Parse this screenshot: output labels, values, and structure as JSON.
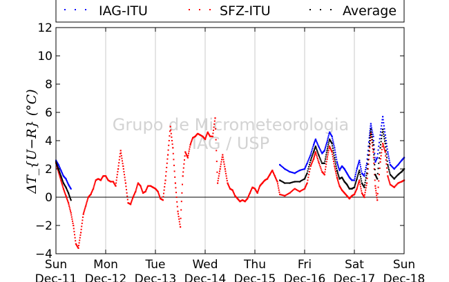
{
  "chart_data": {
    "type": "scatter",
    "ylabel": "ΔT_{U−R} (°C)",
    "ylim": [
      -4,
      12
    ],
    "yticks": [
      -4,
      -2,
      0,
      2,
      4,
      6,
      8,
      10,
      12
    ],
    "xlim": [
      0,
      7
    ],
    "x_unit": "days from Sun Dec-11",
    "xtick_labels": [
      {
        "day": "Sun",
        "date": "Dec-11"
      },
      {
        "day": "Mon",
        "date": "Dec-12"
      },
      {
        "day": "Tue",
        "date": "Dec-13"
      },
      {
        "day": "Wed",
        "date": "Dec-14"
      },
      {
        "day": "Thu",
        "date": "Dec-15"
      },
      {
        "day": "Fri",
        "date": "Dec-16"
      },
      {
        "day": "Sat",
        "date": "Dec-17"
      },
      {
        "day": "Sun",
        "date": "Dec-18"
      }
    ],
    "grid": "vertical-only",
    "zero_line": true,
    "legend_position": "top, above plot",
    "watermark": [
      "Grupo de Micrometeorologia",
      "IAG / USP"
    ],
    "series": [
      {
        "name": "IAG-ITU",
        "color": "#0000ff",
        "points": [
          [
            0.0,
            2.6
          ],
          [
            0.05,
            2.3
          ],
          [
            0.1,
            1.9
          ],
          [
            0.15,
            1.5
          ],
          [
            0.2,
            1.3
          ],
          [
            0.25,
            0.9
          ],
          [
            0.3,
            0.6
          ],
          [
            4.5,
            2.3
          ],
          [
            4.6,
            2.0
          ],
          [
            4.7,
            1.8
          ],
          [
            4.8,
            1.7
          ],
          [
            4.9,
            1.9
          ],
          [
            5.0,
            2.0
          ],
          [
            5.05,
            2.4
          ],
          [
            5.12,
            3.0
          ],
          [
            5.18,
            3.7
          ],
          [
            5.22,
            4.1
          ],
          [
            5.28,
            3.6
          ],
          [
            5.35,
            3.1
          ],
          [
            5.4,
            3.3
          ],
          [
            5.45,
            3.9
          ],
          [
            5.5,
            4.6
          ],
          [
            5.55,
            4.3
          ],
          [
            5.6,
            3.5
          ],
          [
            5.65,
            2.5
          ],
          [
            5.7,
            1.9
          ],
          [
            5.75,
            2.2
          ],
          [
            5.8,
            2.0
          ],
          [
            5.85,
            1.7
          ],
          [
            5.9,
            1.4
          ],
          [
            5.95,
            1.2
          ],
          [
            6.0,
            1.2
          ],
          [
            6.05,
            2.0
          ],
          [
            6.1,
            2.6
          ],
          [
            6.15,
            1.7
          ],
          [
            6.2,
            1.5
          ],
          [
            6.25,
            2.4
          ],
          [
            6.3,
            4.2
          ],
          [
            6.33,
            5.2
          ],
          [
            6.38,
            4.3
          ],
          [
            6.42,
            2.5
          ],
          [
            6.46,
            2.8
          ],
          [
            6.52,
            4.4
          ],
          [
            6.57,
            5.7
          ],
          [
            6.62,
            4.4
          ],
          [
            6.67,
            3.2
          ],
          [
            6.72,
            2.3
          ],
          [
            6.8,
            2.0
          ],
          [
            6.88,
            2.3
          ],
          [
            6.95,
            2.6
          ],
          [
            7.0,
            2.8
          ]
        ]
      },
      {
        "name": "SFZ-ITU",
        "color": "#ff0000",
        "points": [
          [
            0.0,
            2.4
          ],
          [
            0.05,
            1.8
          ],
          [
            0.1,
            1.2
          ],
          [
            0.15,
            0.6
          ],
          [
            0.2,
            0.1
          ],
          [
            0.25,
            -0.4
          ],
          [
            0.3,
            -1.1
          ],
          [
            0.35,
            -2.0
          ],
          [
            0.4,
            -3.3
          ],
          [
            0.45,
            -3.6
          ],
          [
            0.5,
            -2.5
          ],
          [
            0.55,
            -1.2
          ],
          [
            0.6,
            -0.6
          ],
          [
            0.65,
            0.0
          ],
          [
            0.7,
            0.2
          ],
          [
            0.75,
            0.6
          ],
          [
            0.8,
            1.2
          ],
          [
            0.85,
            1.3
          ],
          [
            0.9,
            1.2
          ],
          [
            0.95,
            1.5
          ],
          [
            1.0,
            1.5
          ],
          [
            1.05,
            1.2
          ],
          [
            1.1,
            1.1
          ],
          [
            1.15,
            1.1
          ],
          [
            1.2,
            0.8
          ],
          [
            1.25,
            2.0
          ],
          [
            1.3,
            3.3
          ],
          [
            1.35,
            2.2
          ],
          [
            1.4,
            1.0
          ],
          [
            1.45,
            -0.4
          ],
          [
            1.5,
            -0.5
          ],
          [
            1.55,
            0.0
          ],
          [
            1.6,
            0.4
          ],
          [
            1.65,
            1.0
          ],
          [
            1.7,
            0.8
          ],
          [
            1.75,
            0.3
          ],
          [
            1.8,
            0.4
          ],
          [
            1.85,
            0.8
          ],
          [
            1.9,
            0.8
          ],
          [
            1.95,
            0.7
          ],
          [
            2.0,
            0.6
          ],
          [
            2.05,
            0.4
          ],
          [
            2.1,
            -0.1
          ],
          [
            2.15,
            -0.2
          ],
          [
            2.2,
            1.2
          ],
          [
            2.25,
            3.0
          ],
          [
            2.3,
            5.0
          ],
          [
            2.35,
            3.5
          ],
          [
            2.4,
            1.0
          ],
          [
            2.45,
            -1.0
          ],
          [
            2.5,
            -2.1
          ],
          [
            2.55,
            1.5
          ],
          [
            2.6,
            3.2
          ],
          [
            2.65,
            2.8
          ],
          [
            2.7,
            3.7
          ],
          [
            2.75,
            4.2
          ],
          [
            2.8,
            4.3
          ],
          [
            2.85,
            4.5
          ],
          [
            2.9,
            4.4
          ],
          [
            2.95,
            4.3
          ],
          [
            3.0,
            4.1
          ],
          [
            3.05,
            4.6
          ],
          [
            3.1,
            4.3
          ],
          [
            3.15,
            4.3
          ],
          [
            3.2,
            5.6
          ],
          [
            3.25,
            1.0
          ],
          [
            3.3,
            2.0
          ],
          [
            3.35,
            3.0
          ],
          [
            3.4,
            2.0
          ],
          [
            3.45,
            1.0
          ],
          [
            3.5,
            0.6
          ],
          [
            3.55,
            0.5
          ],
          [
            3.6,
            0.1
          ],
          [
            3.65,
            -0.1
          ],
          [
            3.7,
            -0.3
          ],
          [
            3.75,
            -0.2
          ],
          [
            3.8,
            -0.3
          ],
          [
            3.85,
            -0.1
          ],
          [
            3.9,
            0.3
          ],
          [
            3.95,
            0.7
          ],
          [
            4.0,
            0.6
          ],
          [
            4.05,
            0.3
          ],
          [
            4.1,
            0.8
          ],
          [
            4.15,
            1.0
          ],
          [
            4.2,
            1.2
          ],
          [
            4.25,
            1.3
          ],
          [
            4.3,
            1.6
          ],
          [
            4.35,
            1.9
          ],
          [
            4.4,
            1.5
          ],
          [
            4.45,
            1.1
          ],
          [
            4.5,
            0.2
          ],
          [
            4.6,
            0.1
          ],
          [
            4.7,
            0.3
          ],
          [
            4.8,
            0.6
          ],
          [
            4.9,
            0.4
          ],
          [
            5.0,
            0.6
          ],
          [
            5.05,
            1.0
          ],
          [
            5.12,
            2.2
          ],
          [
            5.18,
            2.7
          ],
          [
            5.22,
            3.2
          ],
          [
            5.28,
            2.5
          ],
          [
            5.35,
            1.8
          ],
          [
            5.4,
            1.6
          ],
          [
            5.45,
            2.7
          ],
          [
            5.5,
            3.6
          ],
          [
            5.55,
            3.2
          ],
          [
            5.6,
            2.2
          ],
          [
            5.65,
            1.4
          ],
          [
            5.7,
            0.8
          ],
          [
            5.75,
            0.5
          ],
          [
            5.8,
            0.3
          ],
          [
            5.85,
            0.1
          ],
          [
            5.9,
            -0.1
          ],
          [
            5.95,
            0.1
          ],
          [
            6.0,
            0.2
          ],
          [
            6.05,
            0.6
          ],
          [
            6.1,
            1.2
          ],
          [
            6.15,
            0.3
          ],
          [
            6.2,
            0.0
          ],
          [
            6.25,
            1.0
          ],
          [
            6.3,
            3.0
          ],
          [
            6.33,
            4.5
          ],
          [
            6.38,
            3.2
          ],
          [
            6.42,
            0.8
          ],
          [
            6.46,
            -0.2
          ],
          [
            6.52,
            2.5
          ],
          [
            6.57,
            3.8
          ],
          [
            6.62,
            3.2
          ],
          [
            6.67,
            1.5
          ],
          [
            6.72,
            0.9
          ],
          [
            6.8,
            0.7
          ],
          [
            6.88,
            1.0
          ],
          [
            6.95,
            1.1
          ],
          [
            7.0,
            1.2
          ]
        ]
      },
      {
        "name": "Average",
        "color": "#000000",
        "points": [
          [
            0.0,
            2.5
          ],
          [
            0.05,
            2.0
          ],
          [
            0.1,
            1.5
          ],
          [
            0.15,
            1.0
          ],
          [
            0.2,
            0.7
          ],
          [
            0.25,
            0.3
          ],
          [
            0.3,
            -0.2
          ],
          [
            4.5,
            1.2
          ],
          [
            4.6,
            1.0
          ],
          [
            4.7,
            1.0
          ],
          [
            4.8,
            1.1
          ],
          [
            4.9,
            1.1
          ],
          [
            5.0,
            1.3
          ],
          [
            5.05,
            1.7
          ],
          [
            5.12,
            2.6
          ],
          [
            5.18,
            3.2
          ],
          [
            5.22,
            3.6
          ],
          [
            5.28,
            3.0
          ],
          [
            5.35,
            2.4
          ],
          [
            5.4,
            2.4
          ],
          [
            5.45,
            3.3
          ],
          [
            5.5,
            4.1
          ],
          [
            5.55,
            3.8
          ],
          [
            5.6,
            2.8
          ],
          [
            5.65,
            1.9
          ],
          [
            5.7,
            1.3
          ],
          [
            5.75,
            1.4
          ],
          [
            5.8,
            1.1
          ],
          [
            5.85,
            0.9
          ],
          [
            5.9,
            0.6
          ],
          [
            5.95,
            0.6
          ],
          [
            6.0,
            0.7
          ],
          [
            6.05,
            1.3
          ],
          [
            6.1,
            1.9
          ],
          [
            6.15,
            1.0
          ],
          [
            6.2,
            0.7
          ],
          [
            6.25,
            1.7
          ],
          [
            6.3,
            3.6
          ],
          [
            6.33,
            4.8
          ],
          [
            6.38,
            3.7
          ],
          [
            6.42,
            1.6
          ],
          [
            6.46,
            1.3
          ],
          [
            6.52,
            3.5
          ],
          [
            6.57,
            4.8
          ],
          [
            6.62,
            3.8
          ],
          [
            6.67,
            2.3
          ],
          [
            6.72,
            1.6
          ],
          [
            6.8,
            1.3
          ],
          [
            6.88,
            1.6
          ],
          [
            6.95,
            1.8
          ],
          [
            7.0,
            2.0
          ]
        ]
      }
    ]
  }
}
